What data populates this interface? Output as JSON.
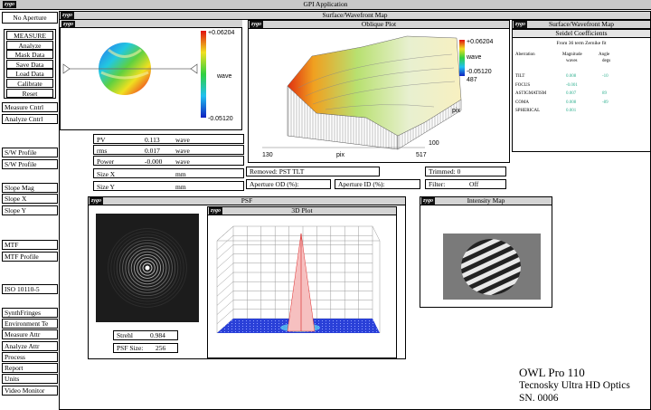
{
  "app": {
    "title": "GPI Application",
    "logo": "zygo"
  },
  "sidebar": {
    "aperture": "No Aperture",
    "group": [
      "MEASURE",
      "Analyze",
      "Mask Data",
      "Save Data",
      "Load Data",
      "Calibrate",
      "Reset"
    ],
    "buttons": [
      "Measure Cntrl",
      "Analyze Cntrl",
      "S/W Profile",
      "S/W Profile",
      "Slope Mag",
      "Slope X",
      "Slope Y",
      "MTF",
      "MTF Profile",
      "ISO 10110-5",
      "SynthFringes",
      "Environment Te",
      "Measure Attr",
      "Analyze Attr",
      "Process",
      "Report",
      "Units",
      "Video Monitor"
    ]
  },
  "main": {
    "title": "Surface/Wavefront Map"
  },
  "surface_map": {
    "scale_max": "+0.06204",
    "unit": "wave",
    "scale_min": "-0.05120"
  },
  "oblique_plot": {
    "title": "Oblique Plot",
    "scale_max": "+0.06204",
    "unit": "wave",
    "scale_min": "-0.05120",
    "z_label": "487",
    "y_axis_label": "pix",
    "x_start": "130",
    "x_axis_label": "pix",
    "x_end": "517",
    "y_end": "100"
  },
  "results": [
    {
      "label": "PV",
      "value": "0.113",
      "unit": "wave"
    },
    {
      "label": "rms",
      "value": "0.017",
      "unit": "wave"
    },
    {
      "label": "Power",
      "value": "-0.000",
      "unit": "wave"
    },
    {
      "label": "Size X",
      "unit": "mm"
    },
    {
      "label": "Size Y",
      "unit": "mm"
    }
  ],
  "settings": {
    "removed": "Removed: PST TLT",
    "trimmed": "Trimmed: 0",
    "aperture_od": "Aperture OD (%):",
    "aperture_id": "Aperture ID (%):",
    "filter": "Filter:",
    "filter_value": "Off"
  },
  "seidel": {
    "window_title": "Surface/Wavefront Map",
    "title": "Seidel Coefficients",
    "subtitle": "From 36 term Zernike fit",
    "headers": [
      "Aberration",
      "Magnitude",
      "Angle"
    ],
    "units": [
      "waves",
      "degs"
    ],
    "rows": [
      {
        "name": "TILT",
        "magnitude": "0.008",
        "angle": "-10"
      },
      {
        "name": "FOCUS",
        "magnitude": "-0.001"
      },
      {
        "name": "ASTIGMATISM",
        "magnitude": "0.007",
        "angle": "89"
      },
      {
        "name": "COMA",
        "magnitude": "0.008",
        "angle": "-89"
      },
      {
        "name": "SPHERICAL",
        "magnitude": "0.001"
      }
    ]
  },
  "psf": {
    "title": "PSF",
    "strehl_label": "Strehl",
    "strehl": "0.984",
    "size_label": "PSF Size:",
    "size": "256"
  },
  "plot_3d": {
    "title": "3D Plot"
  },
  "intensity_map": {
    "title": "Intensity Map"
  },
  "caption": {
    "model": "OWL Pro 110",
    "brand": "Tecnosky Ultra HD Optics",
    "serial": "SN. 0006"
  }
}
